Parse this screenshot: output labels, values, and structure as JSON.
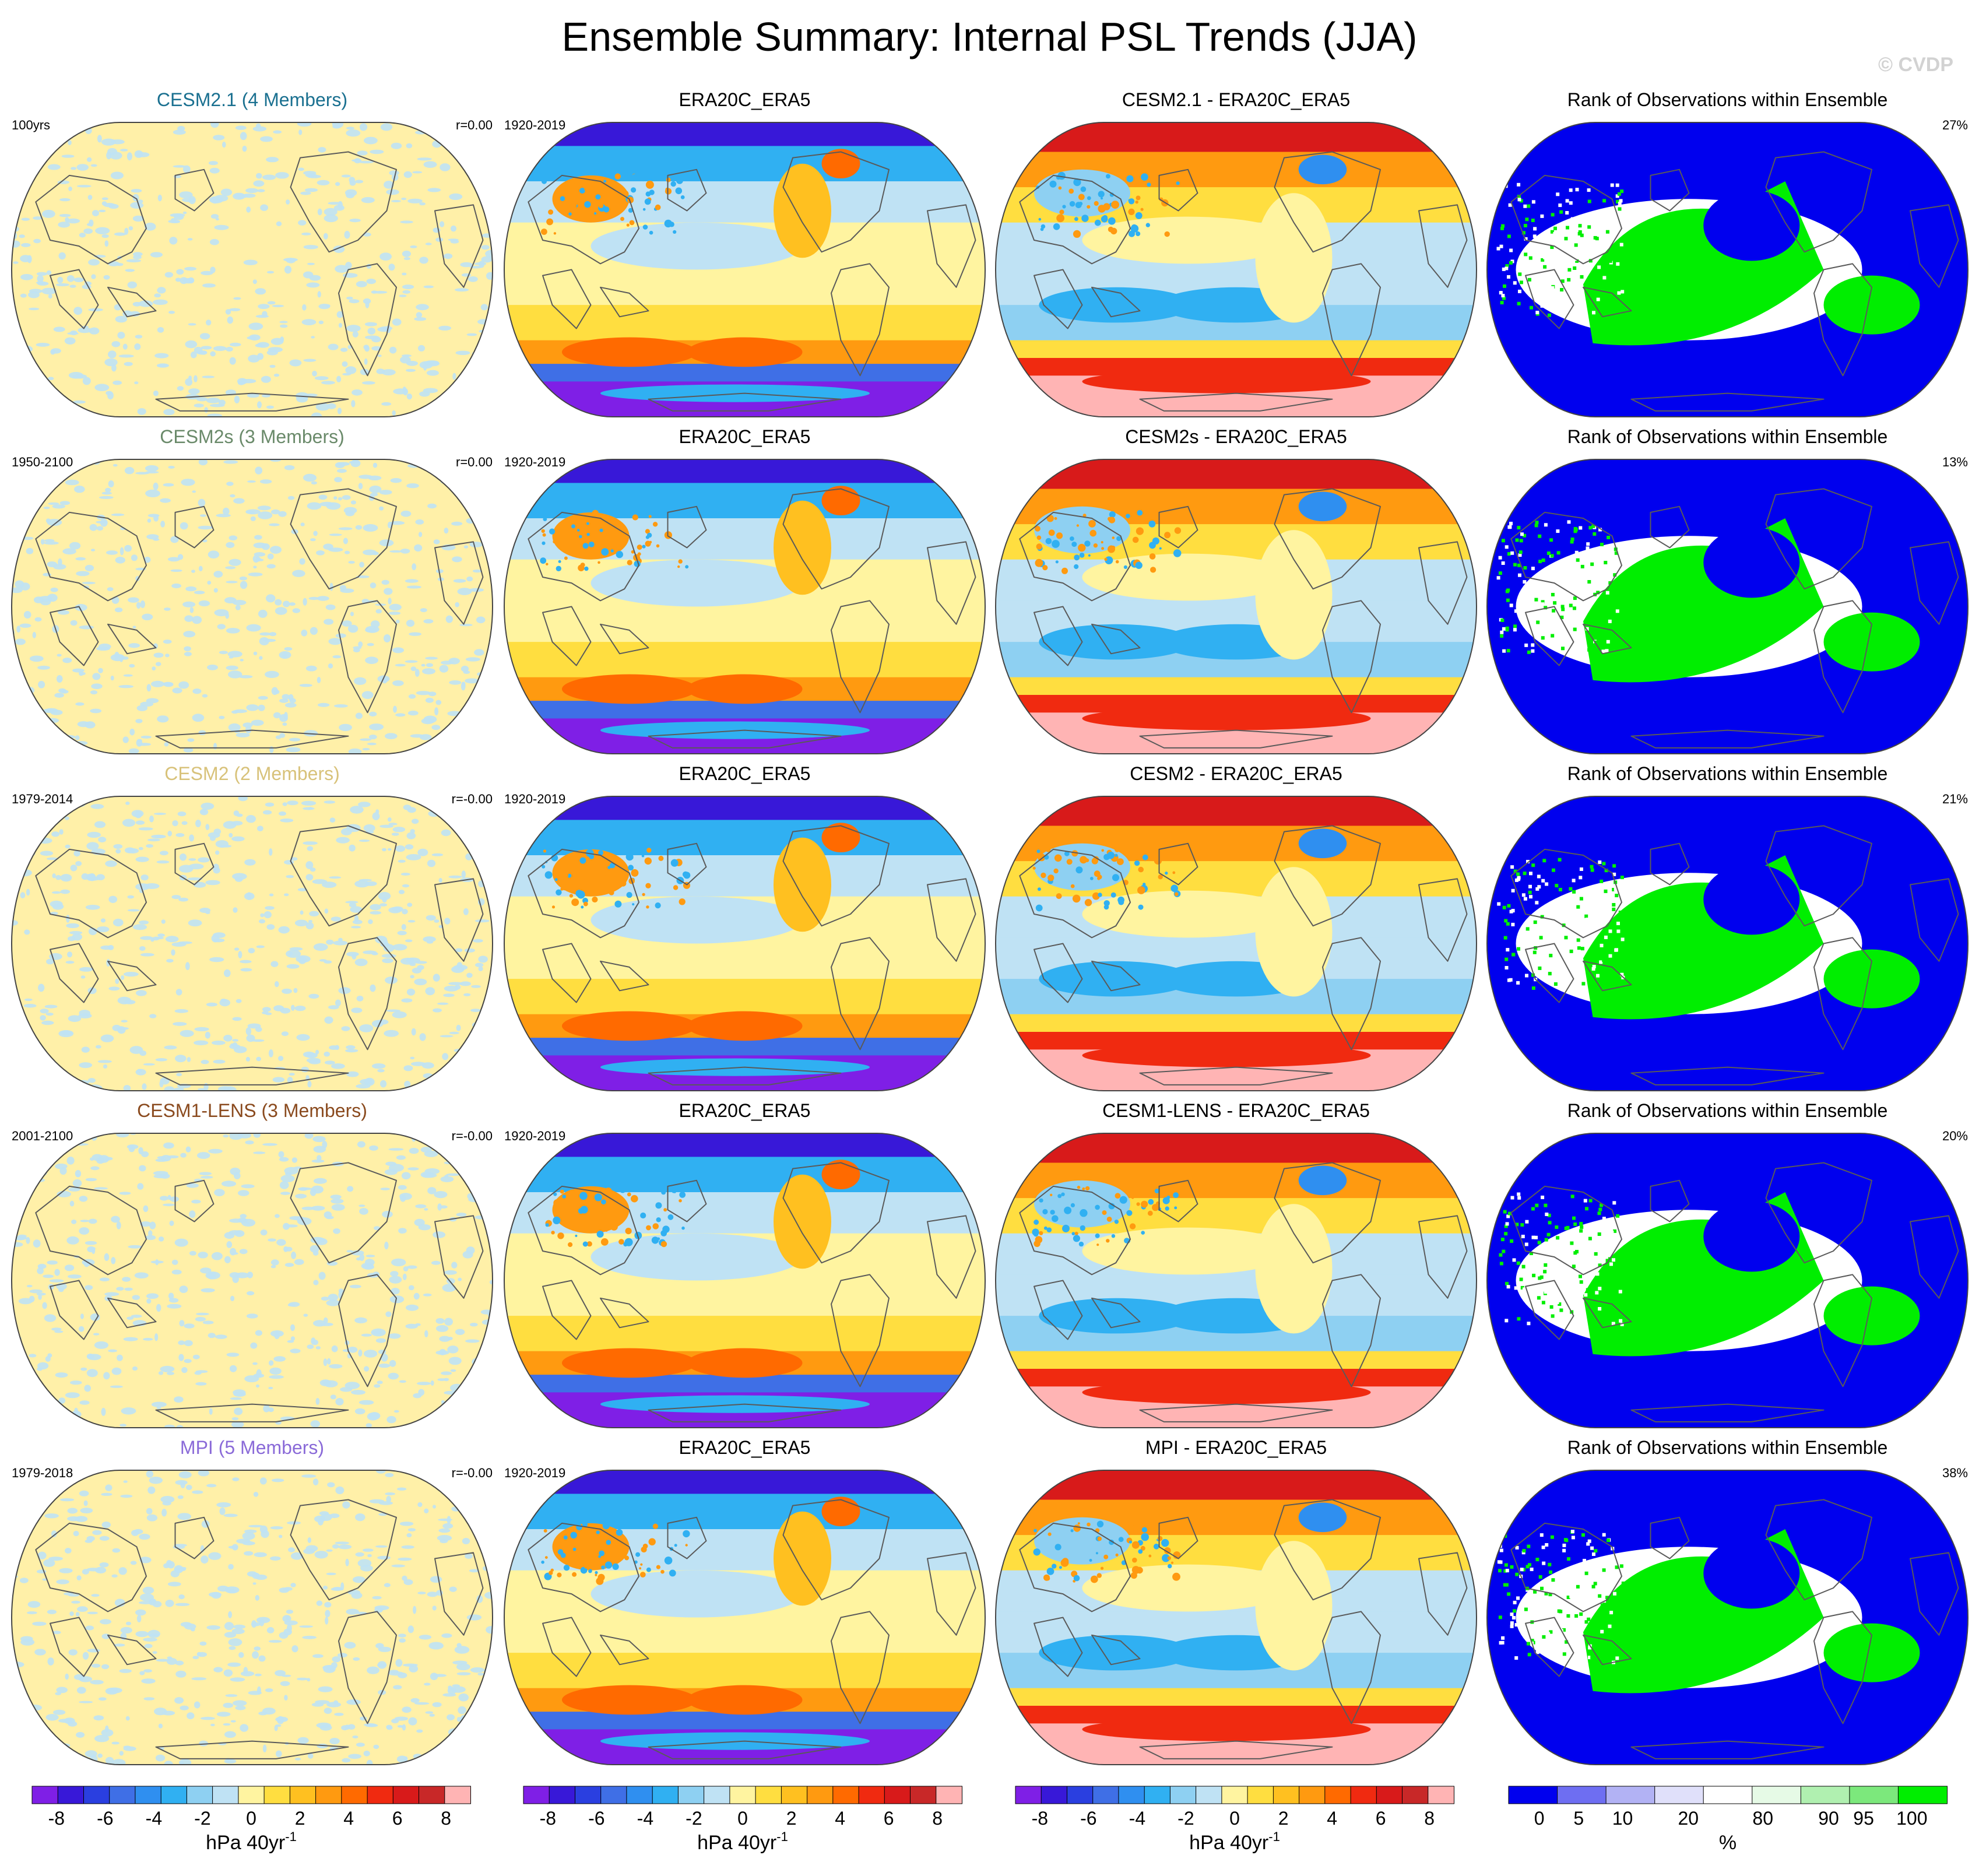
{
  "figure": {
    "title": "Ensemble Summary: Internal PSL Trends (JJA)",
    "copyright": "© CVDP"
  },
  "chart_data": {
    "type": "heatmap",
    "projection": "robinson-world",
    "grid_rows": 5,
    "grid_cols": 4,
    "rows": [
      {
        "model": "CESM2.1 (4 Members)",
        "model_color": "#1a7090",
        "period": "100yrs",
        "r_value": "r=0.00",
        "obs_title": "ERA20C_ERA5",
        "obs_period": "1920-2019",
        "diff_title": "CESM2.1 - ERA20C_ERA5",
        "rank_title": "Rank of Observations within Ensemble",
        "rank_pct": "27%"
      },
      {
        "model": "CESM2s (3 Members)",
        "model_color": "#6a8a6a",
        "period": "1950-2100",
        "r_value": "r=0.00",
        "obs_title": "ERA20C_ERA5",
        "obs_period": "1920-2019",
        "diff_title": "CESM2s - ERA20C_ERA5",
        "rank_title": "Rank of Observations within Ensemble",
        "rank_pct": "13%"
      },
      {
        "model": "CESM2 (2 Members)",
        "model_color": "#d8c27a",
        "period": "1979-2014",
        "r_value": "r=-0.00",
        "obs_title": "ERA20C_ERA5",
        "obs_period": "1920-2019",
        "diff_title": "CESM2 - ERA20C_ERA5",
        "rank_title": "Rank of Observations within Ensemble",
        "rank_pct": "21%"
      },
      {
        "model": "CESM1-LENS (3 Members)",
        "model_color": "#8a4a1e",
        "period": "2001-2100",
        "r_value": "r=-0.00",
        "obs_title": "ERA20C_ERA5",
        "obs_period": "1920-2019",
        "diff_title": "CESM1-LENS - ERA20C_ERA5",
        "rank_title": "Rank of Observations within Ensemble",
        "rank_pct": "20%"
      },
      {
        "model": "MPI (5 Members)",
        "model_color": "#8a6ad8",
        "period": "1979-2018",
        "r_value": "r=-0.00",
        "obs_title": "ERA20C_ERA5",
        "obs_period": "1920-2019",
        "diff_title": "MPI - ERA20C_ERA5",
        "rank_title": "Rank of Observations within Ensemble",
        "rank_pct": "38%"
      }
    ],
    "trend_colorbar": {
      "colors": [
        "#7f1fe6",
        "#3818d8",
        "#2a3fe0",
        "#3f6fe6",
        "#2f8ff0",
        "#30b0f2",
        "#8ed0f2",
        "#bfe2f4",
        "#fff4a0",
        "#ffde40",
        "#ffc020",
        "#ff9a10",
        "#ff6a00",
        "#f02a10",
        "#d81a1a",
        "#c82828",
        "#ffb4b4"
      ],
      "tick_labels": [
        "-8",
        "-6",
        "-4",
        "-2",
        "0",
        "2",
        "4",
        "6",
        "8"
      ],
      "tick_values": [
        -8,
        -6,
        -4,
        -2,
        0,
        2,
        4,
        6,
        8
      ],
      "range": [
        -9,
        9
      ],
      "units": "hPa 40yr",
      "units_exponent": "-1"
    },
    "rank_colorbar": {
      "colors": [
        "#0000ee",
        "#6e6ef2",
        "#b2b2f4",
        "#e0e0fa",
        "#ffffff",
        "#e6fae6",
        "#b0f0b0",
        "#7ce87c",
        "#00ee00"
      ],
      "tick_labels": [
        "0",
        "5",
        "10",
        "20",
        "80",
        "90",
        "95",
        "100"
      ],
      "units": "%"
    }
  }
}
